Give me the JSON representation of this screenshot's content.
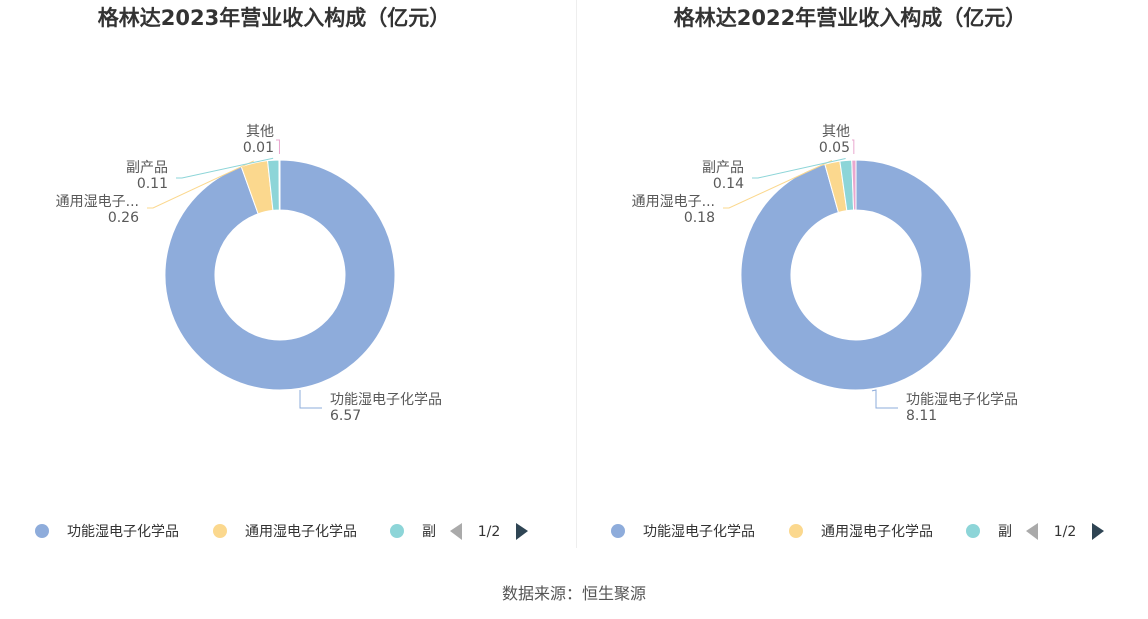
{
  "chart_data": [
    {
      "type": "pie",
      "title": "格林达2023年营业收入构成（亿元）",
      "categories": [
        "功能湿电子化学品",
        "通用湿电子化学品",
        "副产品",
        "其他"
      ],
      "series": [
        {
          "values": [
            6.57,
            0.26,
            0.11,
            0.01
          ]
        }
      ],
      "slice_labels": [
        {
          "name": "功能湿电子化学品",
          "value": "6.57"
        },
        {
          "name": "通用湿电子...",
          "value": "0.26"
        },
        {
          "name": "副产品",
          "value": "0.11"
        },
        {
          "name": "其他",
          "value": "0.01"
        }
      ],
      "legend": {
        "placement": "bottom",
        "visible_items": [
          "功能湿电子化学品",
          "通用湿电子化学品",
          "副"
        ],
        "page": "1/2"
      }
    },
    {
      "type": "pie",
      "title": "格林达2022年营业收入构成（亿元）",
      "categories": [
        "功能湿电子化学品",
        "通用湿电子化学品",
        "副产品",
        "其他"
      ],
      "series": [
        {
          "values": [
            8.11,
            0.18,
            0.14,
            0.05
          ]
        }
      ],
      "slice_labels": [
        {
          "name": "功能湿电子化学品",
          "value": "8.11"
        },
        {
          "name": "通用湿电子...",
          "value": "0.18"
        },
        {
          "name": "副产品",
          "value": "0.14"
        },
        {
          "name": "其他",
          "value": "0.05"
        }
      ],
      "legend": {
        "placement": "bottom",
        "visible_items": [
          "功能湿电子化学品",
          "通用湿电子化学品",
          "副"
        ],
        "page": "1/2"
      }
    }
  ],
  "colors": [
    "#8eacdb",
    "#fbd88e",
    "#8dd5d8",
    "#e9a8cf"
  ],
  "arrow_colors": {
    "disabled": "#aaaaaa",
    "active": "#2f4554"
  },
  "source": "数据来源：恒生聚源"
}
